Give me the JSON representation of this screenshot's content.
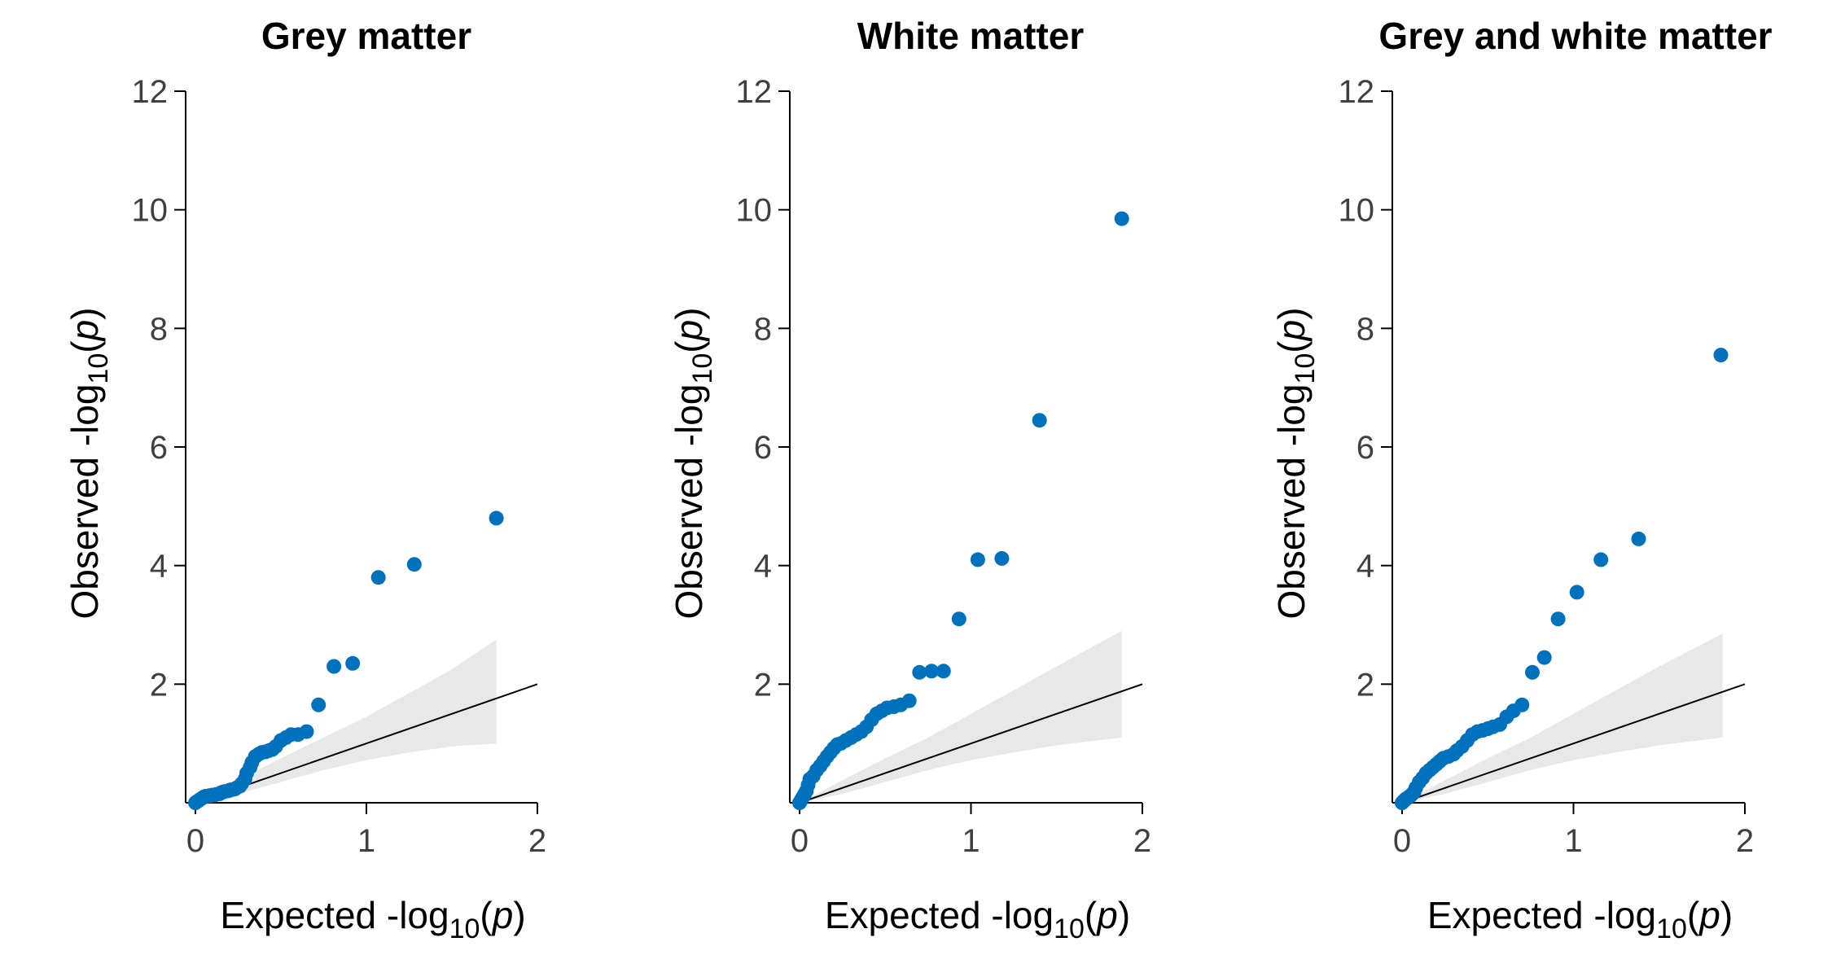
{
  "colors": {
    "points": "#0072bd",
    "band": "#e8e8e8",
    "reference_line": "#000000",
    "axis": "#000000",
    "ticks_text": "#404040"
  },
  "axis_text": {
    "x_main": "Expected -log",
    "y_main": "Observed -log",
    "sub": "10",
    "open": "(",
    "p": "p",
    "close": ")"
  },
  "chart_data": [
    {
      "type": "scatter",
      "title": "Grey matter",
      "xlabel": "Expected -log10(p)",
      "ylabel": "Observed -log10(p)",
      "xlim": [
        0,
        2
      ],
      "ylim": [
        0,
        12
      ],
      "xticks": [
        "0",
        "1",
        "2"
      ],
      "yticks": [
        "2",
        "4",
        "6",
        "8",
        "10",
        "12"
      ],
      "grid": false,
      "reference_line": {
        "x": [
          0,
          2
        ],
        "y": [
          0,
          2
        ]
      },
      "confidence_band": {
        "x": [
          0,
          0.25,
          0.5,
          0.75,
          1.0,
          1.25,
          1.5,
          1.76
        ],
        "lower": [
          0,
          0.15,
          0.35,
          0.55,
          0.72,
          0.85,
          0.95,
          1.0
        ],
        "upper": [
          0,
          0.38,
          0.75,
          1.1,
          1.45,
          1.85,
          2.25,
          2.75
        ]
      },
      "x": [
        0.0,
        0.01,
        0.02,
        0.03,
        0.04,
        0.05,
        0.06,
        0.08,
        0.09,
        0.1,
        0.11,
        0.12,
        0.14,
        0.15,
        0.16,
        0.17,
        0.19,
        0.2,
        0.21,
        0.23,
        0.24,
        0.26,
        0.27,
        0.29,
        0.3,
        0.32,
        0.33,
        0.35,
        0.37,
        0.39,
        0.41,
        0.43,
        0.45,
        0.47,
        0.5,
        0.53,
        0.56,
        0.6,
        0.65,
        0.72,
        0.81,
        0.92,
        1.07,
        1.28,
        1.76
      ],
      "y": [
        0.0,
        0.02,
        0.04,
        0.06,
        0.08,
        0.1,
        0.11,
        0.12,
        0.12,
        0.13,
        0.13,
        0.14,
        0.15,
        0.17,
        0.18,
        0.19,
        0.2,
        0.21,
        0.22,
        0.23,
        0.25,
        0.28,
        0.32,
        0.4,
        0.5,
        0.6,
        0.68,
        0.78,
        0.82,
        0.85,
        0.86,
        0.88,
        0.9,
        0.95,
        1.05,
        1.1,
        1.15,
        1.15,
        1.2,
        1.65,
        2.3,
        2.35,
        3.8,
        4.02,
        4.8
      ]
    },
    {
      "type": "scatter",
      "title": "White matter",
      "xlabel": "Expected -log10(p)",
      "ylabel": "Observed -log10(p)",
      "xlim": [
        0,
        2
      ],
      "ylim": [
        0,
        12
      ],
      "xticks": [
        "0",
        "1",
        "2"
      ],
      "yticks": [
        "2",
        "4",
        "6",
        "8",
        "10",
        "12"
      ],
      "grid": false,
      "reference_line": {
        "x": [
          0,
          2
        ],
        "y": [
          0,
          2
        ]
      },
      "confidence_band": {
        "x": [
          0,
          0.25,
          0.5,
          0.75,
          1.0,
          1.25,
          1.5,
          1.88
        ],
        "lower": [
          0,
          0.15,
          0.35,
          0.55,
          0.72,
          0.85,
          0.97,
          1.1
        ],
        "upper": [
          0,
          0.38,
          0.75,
          1.1,
          1.5,
          1.9,
          2.3,
          2.9
        ]
      },
      "x": [
        0.0,
        0.01,
        0.02,
        0.03,
        0.04,
        0.05,
        0.06,
        0.08,
        0.1,
        0.12,
        0.14,
        0.16,
        0.18,
        0.2,
        0.22,
        0.24,
        0.27,
        0.3,
        0.33,
        0.36,
        0.39,
        0.42,
        0.45,
        0.48,
        0.51,
        0.55,
        0.59,
        0.64,
        0.7,
        0.77,
        0.84,
        0.93,
        1.04,
        1.18,
        1.4,
        1.88
      ],
      "y": [
        0.0,
        0.05,
        0.1,
        0.15,
        0.2,
        0.3,
        0.4,
        0.45,
        0.55,
        0.62,
        0.7,
        0.78,
        0.85,
        0.92,
        0.98,
        1.0,
        1.05,
        1.1,
        1.15,
        1.2,
        1.28,
        1.4,
        1.5,
        1.55,
        1.6,
        1.62,
        1.65,
        1.72,
        2.2,
        2.22,
        2.22,
        3.1,
        4.1,
        4.12,
        6.45,
        9.85
      ]
    },
    {
      "type": "scatter",
      "title": "Grey and white matter",
      "xlabel": "Expected -log10(p)",
      "ylabel": "Observed -log10(p)",
      "xlim": [
        0,
        2
      ],
      "ylim": [
        0,
        12
      ],
      "xticks": [
        "0",
        "1",
        "2"
      ],
      "yticks": [
        "2",
        "4",
        "6",
        "8",
        "10",
        "12"
      ],
      "grid": false,
      "reference_line": {
        "x": [
          0,
          2
        ],
        "y": [
          0,
          2
        ]
      },
      "confidence_band": {
        "x": [
          0,
          0.25,
          0.5,
          0.75,
          1.0,
          1.25,
          1.5,
          1.87
        ],
        "lower": [
          0,
          0.15,
          0.35,
          0.55,
          0.72,
          0.85,
          0.97,
          1.1
        ],
        "upper": [
          0,
          0.38,
          0.75,
          1.1,
          1.5,
          1.9,
          2.3,
          2.85
        ]
      },
      "x": [
        0.0,
        0.01,
        0.02,
        0.03,
        0.04,
        0.05,
        0.06,
        0.07,
        0.08,
        0.1,
        0.12,
        0.14,
        0.16,
        0.18,
        0.2,
        0.22,
        0.24,
        0.27,
        0.3,
        0.32,
        0.35,
        0.38,
        0.41,
        0.44,
        0.47,
        0.5,
        0.53,
        0.57,
        0.61,
        0.65,
        0.7,
        0.76,
        0.83,
        0.91,
        1.02,
        1.16,
        1.38,
        1.86
      ],
      "y": [
        0.0,
        0.03,
        0.06,
        0.08,
        0.1,
        0.12,
        0.15,
        0.18,
        0.25,
        0.35,
        0.42,
        0.5,
        0.55,
        0.6,
        0.65,
        0.7,
        0.75,
        0.78,
        0.82,
        0.88,
        0.95,
        1.05,
        1.15,
        1.2,
        1.22,
        1.25,
        1.28,
        1.32,
        1.45,
        1.55,
        1.65,
        2.2,
        2.45,
        3.1,
        3.55,
        4.1,
        4.45,
        7.55
      ]
    }
  ]
}
